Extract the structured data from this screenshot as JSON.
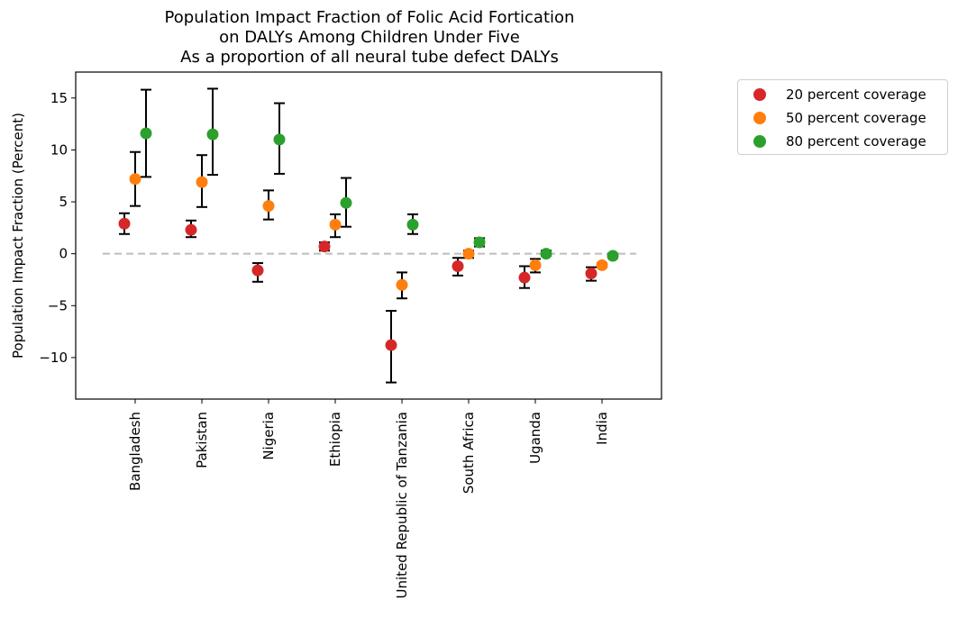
{
  "chart_data": {
    "type": "scatter",
    "title": "Population Impact Fraction of Folic Acid Fortication\non DALYs Among Children Under Five\nAs a proportion of all neural tube defect DALYs",
    "ylabel": "Population Impact Fraction (Percent)",
    "xlabel": "",
    "categories": [
      "Bangladesh",
      "Pakistan",
      "Nigeria",
      "Ethiopia",
      "United Republic of Tanzania",
      "South Africa",
      "Uganda",
      "India"
    ],
    "ylim": [
      -14,
      17.5
    ],
    "yticks": [
      -10,
      -5,
      0,
      5,
      10,
      15
    ],
    "reference_line": 0,
    "grid": false,
    "legend_position": "outside-right",
    "series": [
      {
        "name": "20 percent coverage",
        "color": "#d62728",
        "values": [
          2.9,
          2.3,
          -1.6,
          0.7,
          -8.8,
          -1.2,
          -2.3,
          -1.9
        ],
        "lower": [
          1.9,
          1.6,
          -2.7,
          0.3,
          -12.4,
          -2.1,
          -3.3,
          -2.6
        ],
        "upper": [
          3.9,
          3.2,
          -0.9,
          1.1,
          -5.5,
          -0.4,
          -1.2,
          -1.3
        ]
      },
      {
        "name": "50 percent coverage",
        "color": "#ff7f0e",
        "values": [
          7.2,
          6.9,
          4.6,
          2.8,
          -3.0,
          0.0,
          -1.1,
          -1.1
        ],
        "lower": [
          4.6,
          4.5,
          3.3,
          1.6,
          -4.3,
          -0.4,
          -1.8,
          -1.3
        ],
        "upper": [
          9.8,
          9.5,
          6.1,
          3.8,
          -1.8,
          0.3,
          -0.5,
          -0.9
        ]
      },
      {
        "name": "80 percent coverage",
        "color": "#2ca02c",
        "values": [
          11.6,
          11.5,
          11.0,
          4.9,
          2.8,
          1.1,
          0.0,
          -0.2
        ],
        "lower": [
          7.4,
          7.6,
          7.7,
          2.6,
          1.9,
          0.7,
          -0.2,
          -0.4
        ],
        "upper": [
          15.8,
          15.9,
          14.5,
          7.3,
          3.8,
          1.5,
          0.3,
          0.0
        ]
      }
    ]
  }
}
